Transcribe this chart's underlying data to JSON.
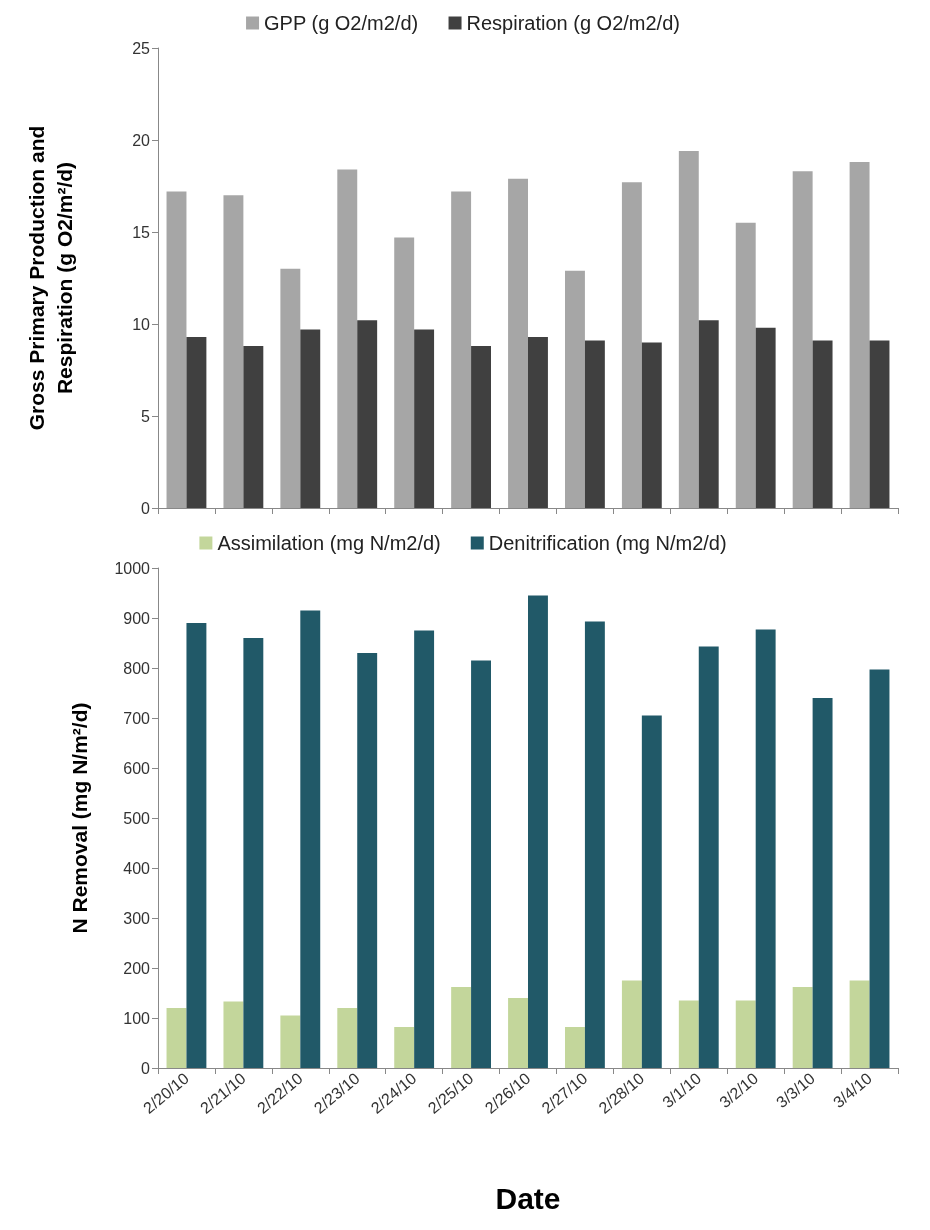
{
  "chart_data": [
    {
      "type": "bar",
      "ylabel": "Gross Primary Production and Respiration (g O2/m²/d)",
      "categories": [
        null,
        null,
        null,
        null,
        null,
        null,
        null,
        null,
        null,
        null,
        null,
        null,
        null
      ],
      "series": [
        {
          "name": "GPP (g O2/m2/d)",
          "color": "#a6a6a6",
          "values": [
            17.2,
            17.0,
            13.0,
            18.4,
            14.7,
            17.2,
            17.9,
            12.9,
            17.7,
            19.4,
            15.5,
            18.3,
            18.8
          ]
        },
        {
          "name": "Respiration (g O2/m2/d)",
          "color": "#404040",
          "values": [
            9.3,
            8.8,
            9.7,
            10.2,
            9.7,
            8.8,
            9.3,
            9.1,
            9.0,
            10.2,
            9.8,
            9.1,
            9.1
          ]
        }
      ],
      "ylim": [
        0,
        25
      ],
      "yticks": [
        0,
        5,
        10,
        15,
        20,
        25
      ],
      "grid": false,
      "legend": "top",
      "tick_labels": "y"
    },
    {
      "type": "bar",
      "xlabel": "Date",
      "ylabel": "N Removal (mg N/m²/d)",
      "categories": [
        "2/20/10",
        "2/21/10",
        "2/22/10",
        "2/23/10",
        "2/24/10",
        "2/25/10",
        "2/26/10",
        "2/27/10",
        "2/28/10",
        "3/1/10",
        "3/2/10",
        "3/3/10",
        "3/4/10"
      ],
      "series": [
        {
          "name": "Assimilation (mg N/m2/d)",
          "color": "#c3d69b",
          "values": [
            120,
            133,
            105,
            120,
            82,
            162,
            140,
            82,
            175,
            135,
            135,
            162,
            175
          ]
        },
        {
          "name": "Denitrification (mg N/m2/d)",
          "color": "#215968",
          "values": [
            890,
            860,
            915,
            830,
            875,
            815,
            945,
            893,
            705,
            843,
            877,
            740,
            797
          ]
        }
      ],
      "ylim": [
        0,
        1000
      ],
      "yticks": [
        0,
        100,
        200,
        300,
        400,
        500,
        600,
        700,
        800,
        900,
        1000
      ],
      "grid": false,
      "legend": "top"
    }
  ]
}
